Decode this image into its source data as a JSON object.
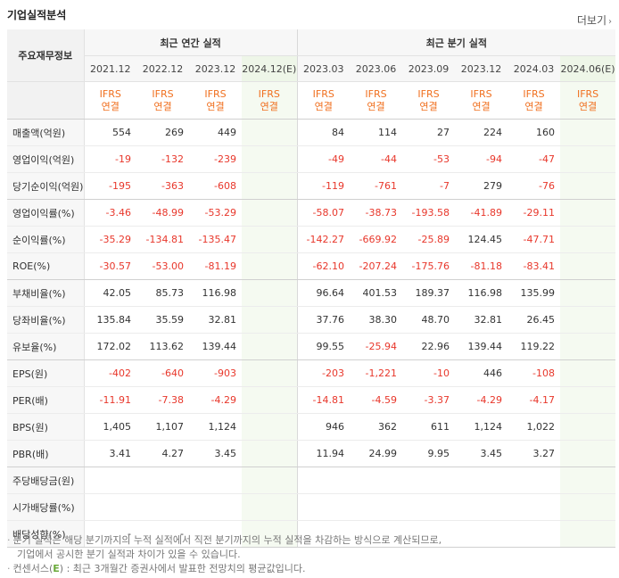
{
  "section_title": "기업실적분석",
  "more_label": "더보기",
  "header": {
    "row_label": "주요재무정보",
    "annual_group": "최근 연간 실적",
    "quarter_group": "최근 분기 실적",
    "annual_periods": [
      "2021.12",
      "2022.12",
      "2023.12",
      "2024.12(E)"
    ],
    "quarter_periods": [
      "2023.03",
      "2023.06",
      "2023.09",
      "2023.12",
      "2024.03",
      "2024.06(E)"
    ],
    "basis_top": "IFRS",
    "basis_bottom": "연결"
  },
  "rows": [
    {
      "label": "매출액(억원)",
      "annual": [
        "554",
        "269",
        "449",
        ""
      ],
      "quarter": [
        "84",
        "114",
        "27",
        "224",
        "160",
        ""
      ]
    },
    {
      "label": "영업이익(억원)",
      "annual": [
        "-19",
        "-132",
        "-239",
        ""
      ],
      "quarter": [
        "-49",
        "-44",
        "-53",
        "-94",
        "-47",
        ""
      ]
    },
    {
      "label": "당기순이익(억원)",
      "annual": [
        "-195",
        "-363",
        "-608",
        ""
      ],
      "quarter": [
        "-119",
        "-761",
        "-7",
        "279",
        "-76",
        ""
      ]
    },
    {
      "label": "영업이익률(%)",
      "annual": [
        "-3.46",
        "-48.99",
        "-53.29",
        ""
      ],
      "quarter": [
        "-58.07",
        "-38.73",
        "-193.58",
        "-41.89",
        "-29.11",
        ""
      ]
    },
    {
      "label": "순이익률(%)",
      "annual": [
        "-35.29",
        "-134.81",
        "-135.47",
        ""
      ],
      "quarter": [
        "-142.27",
        "-669.92",
        "-25.89",
        "124.45",
        "-47.71",
        ""
      ]
    },
    {
      "label": "ROE(%)",
      "annual": [
        "-30.57",
        "-53.00",
        "-81.19",
        ""
      ],
      "quarter": [
        "-62.10",
        "-207.24",
        "-175.76",
        "-81.18",
        "-83.41",
        ""
      ]
    },
    {
      "label": "부채비율(%)",
      "annual": [
        "42.05",
        "85.73",
        "116.98",
        ""
      ],
      "quarter": [
        "96.64",
        "401.53",
        "189.37",
        "116.98",
        "135.99",
        ""
      ]
    },
    {
      "label": "당좌비율(%)",
      "annual": [
        "135.84",
        "35.59",
        "32.81",
        ""
      ],
      "quarter": [
        "37.76",
        "38.30",
        "48.70",
        "32.81",
        "26.45",
        ""
      ]
    },
    {
      "label": "유보율(%)",
      "annual": [
        "172.02",
        "113.62",
        "139.44",
        ""
      ],
      "quarter": [
        "99.55",
        "-25.94",
        "22.96",
        "139.44",
        "119.22",
        ""
      ]
    },
    {
      "label": "EPS(원)",
      "annual": [
        "-402",
        "-640",
        "-903",
        ""
      ],
      "quarter": [
        "-203",
        "-1,221",
        "-10",
        "446",
        "-108",
        ""
      ]
    },
    {
      "label": "PER(배)",
      "annual": [
        "-11.91",
        "-7.38",
        "-4.29",
        ""
      ],
      "quarter": [
        "-14.81",
        "-4.59",
        "-3.37",
        "-4.29",
        "-4.17",
        ""
      ]
    },
    {
      "label": "BPS(원)",
      "annual": [
        "1,405",
        "1,107",
        "1,124",
        ""
      ],
      "quarter": [
        "946",
        "362",
        "611",
        "1,124",
        "1,022",
        ""
      ]
    },
    {
      "label": "PBR(배)",
      "annual": [
        "3.41",
        "4.27",
        "3.45",
        ""
      ],
      "quarter": [
        "11.94",
        "24.99",
        "9.95",
        "3.45",
        "3.27",
        ""
      ]
    },
    {
      "label": "주당배당금(원)",
      "annual": [
        "",
        "",
        "",
        ""
      ],
      "quarter": [
        "",
        "",
        "",
        "",
        "",
        ""
      ]
    },
    {
      "label": "시가배당률(%)",
      "annual": [
        "",
        "",
        "",
        ""
      ],
      "quarter": [
        "",
        "",
        "",
        "",
        "",
        ""
      ]
    },
    {
      "label": "배당성향(%)",
      "annual": [
        "-",
        "-",
        "",
        ""
      ],
      "quarter": [
        "",
        "",
        "",
        "",
        "",
        ""
      ]
    }
  ],
  "group_ends": [
    2,
    5,
    8,
    12,
    15
  ],
  "notes": {
    "line1": "분기 실적은 해당 분기까지의 누적 실적에서 직전 분기까지의 누적 실적을 차감하는 방식으로 계산되므로,",
    "line2": "기업에서 공시한 분기 실적과 차이가 있을 수 있습니다.",
    "line3_prefix": "컨센서스(",
    "line3_e": "E",
    "line3_suffix": ") : 최근 3개월간 증권사에서 발표한 전망치의 평균값입니다."
  },
  "colors": {
    "negative": "#e8372b",
    "basis": "#f06f1e",
    "estimate_bg": "#f5faf1",
    "estimate_mark": "#6aaa3a"
  }
}
